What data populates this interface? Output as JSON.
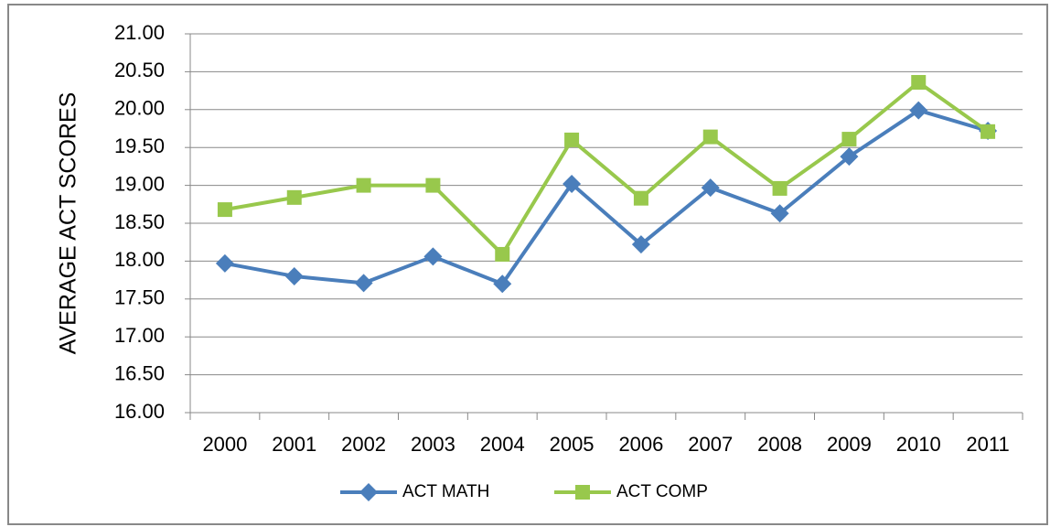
{
  "chart_data": {
    "type": "line",
    "y_label": "AVERAGE ACT SCORES",
    "categories": [
      "2000",
      "2001",
      "2002",
      "2003",
      "2004",
      "2005",
      "2006",
      "2007",
      "2008",
      "2009",
      "2010",
      "2011"
    ],
    "series": [
      {
        "name": "ACT MATH",
        "color": "#4a7ebb",
        "marker": "diamond",
        "values": [
          17.97,
          17.8,
          17.71,
          18.06,
          17.7,
          19.02,
          18.22,
          18.97,
          18.63,
          19.38,
          19.99,
          19.72
        ]
      },
      {
        "name": "ACT COMP",
        "color": "#98c84c",
        "marker": "square",
        "values": [
          18.68,
          18.84,
          19.0,
          19.0,
          18.09,
          19.6,
          18.83,
          19.64,
          18.96,
          19.61,
          20.36,
          19.71
        ]
      }
    ],
    "ylim": [
      16,
      21
    ],
    "yticks": [
      {
        "value": 16,
        "label": "16.00"
      },
      {
        "value": 16.5,
        "label": "16.50"
      },
      {
        "value": 17,
        "label": "17.00"
      },
      {
        "value": 17.5,
        "label": "17.50"
      },
      {
        "value": 18,
        "label": "18.00"
      },
      {
        "value": 18.5,
        "label": "18.50"
      },
      {
        "value": 19,
        "label": "19.00"
      },
      {
        "value": 19.5,
        "label": "19.50"
      },
      {
        "value": 20,
        "label": "20.00"
      },
      {
        "value": 20.5,
        "label": "20.50"
      },
      {
        "value": 21,
        "label": "21.00"
      }
    ],
    "grid": true,
    "legend": "bottom"
  }
}
